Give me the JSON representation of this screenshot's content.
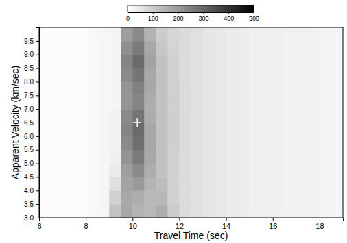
{
  "chart_data": {
    "type": "heatmap",
    "xlabel": "Travel Time (sec)",
    "ylabel": "Apparent Velocity (km/sec)",
    "xlim": [
      6,
      19
    ],
    "ylim": [
      3,
      10
    ],
    "xticks": [
      6,
      8,
      10,
      12,
      14,
      16,
      18
    ],
    "yticks": [
      {
        "value": 3,
        "label": "3.0"
      },
      3.5,
      {
        "value": 4,
        "label": "4.0"
      },
      4.5,
      {
        "value": 5,
        "label": "5.0"
      },
      5.5,
      {
        "value": 6,
        "label": "6.0"
      },
      6.5,
      {
        "value": 7,
        "label": "7.0"
      },
      7.5,
      {
        "value": 8,
        "label": "8.0"
      },
      8.5,
      {
        "value": 9,
        "label": "9.0"
      },
      9.5
    ],
    "color": "#000000",
    "x_bins": [
      6,
      6.5,
      7,
      7.5,
      8,
      8.5,
      9,
      9.5,
      10,
      10.5,
      11,
      11.5,
      12,
      12.5,
      13,
      13.5,
      14,
      14.5,
      15,
      15.5,
      16,
      16.5,
      17,
      17.5,
      18,
      18.5,
      19
    ],
    "y_bins": [
      3,
      3.5,
      4,
      4.5,
      5,
      5.5,
      6,
      6.5,
      7,
      7.5,
      8,
      8.5,
      9,
      9.5,
      10
    ],
    "z": [
      [
        8,
        8,
        8,
        8,
        12,
        18,
        120,
        170,
        150,
        140,
        160,
        100,
        70,
        60,
        50,
        45,
        40,
        35,
        30,
        30,
        30,
        25,
        25,
        25,
        20,
        20
      ],
      [
        8,
        8,
        8,
        8,
        12,
        18,
        90,
        170,
        160,
        140,
        140,
        90,
        70,
        60,
        50,
        45,
        40,
        35,
        30,
        30,
        30,
        25,
        25,
        25,
        20,
        20
      ],
      [
        8,
        8,
        8,
        8,
        12,
        18,
        60,
        180,
        200,
        150,
        130,
        90,
        70,
        60,
        50,
        45,
        40,
        35,
        30,
        30,
        30,
        25,
        25,
        25,
        20,
        20
      ],
      [
        8,
        8,
        8,
        8,
        12,
        18,
        40,
        190,
        230,
        160,
        120,
        90,
        70,
        60,
        50,
        45,
        40,
        35,
        30,
        30,
        30,
        25,
        25,
        25,
        20,
        20
      ],
      [
        8,
        8,
        8,
        8,
        12,
        18,
        30,
        210,
        260,
        170,
        120,
        90,
        70,
        60,
        50,
        45,
        40,
        35,
        30,
        30,
        30,
        25,
        25,
        25,
        20,
        20
      ],
      [
        8,
        8,
        8,
        8,
        12,
        18,
        25,
        230,
        280,
        170,
        120,
        95,
        70,
        60,
        50,
        45,
        40,
        35,
        30,
        30,
        30,
        25,
        25,
        25,
        20,
        20
      ],
      [
        8,
        8,
        8,
        8,
        12,
        18,
        25,
        240,
        290,
        170,
        120,
        95,
        70,
        60,
        50,
        45,
        40,
        35,
        30,
        30,
        30,
        25,
        25,
        25,
        20,
        20
      ],
      [
        8,
        8,
        8,
        8,
        12,
        18,
        25,
        230,
        270,
        160,
        120,
        95,
        70,
        60,
        50,
        45,
        40,
        35,
        30,
        30,
        30,
        25,
        25,
        25,
        20,
        20
      ],
      [
        8,
        8,
        8,
        8,
        12,
        18,
        20,
        210,
        240,
        160,
        120,
        95,
        70,
        60,
        50,
        45,
        40,
        35,
        30,
        30,
        30,
        25,
        25,
        25,
        20,
        20
      ],
      [
        8,
        8,
        8,
        8,
        12,
        18,
        20,
        210,
        250,
        170,
        120,
        95,
        70,
        60,
        50,
        45,
        40,
        35,
        30,
        30,
        30,
        25,
        25,
        25,
        20,
        20
      ],
      [
        8,
        8,
        8,
        8,
        12,
        18,
        20,
        230,
        270,
        170,
        120,
        90,
        70,
        60,
        50,
        45,
        40,
        35,
        30,
        30,
        30,
        25,
        25,
        25,
        20,
        20
      ],
      [
        8,
        8,
        8,
        8,
        12,
        18,
        20,
        240,
        290,
        180,
        120,
        90,
        70,
        60,
        50,
        45,
        40,
        35,
        30,
        30,
        30,
        25,
        25,
        25,
        20,
        20
      ],
      [
        8,
        8,
        8,
        8,
        12,
        18,
        20,
        220,
        260,
        170,
        110,
        85,
        70,
        60,
        50,
        45,
        40,
        35,
        30,
        30,
        30,
        25,
        25,
        25,
        20,
        20
      ],
      [
        8,
        8,
        8,
        8,
        12,
        18,
        20,
        190,
        230,
        150,
        100,
        80,
        70,
        60,
        50,
        45,
        40,
        35,
        30,
        30,
        30,
        25,
        25,
        25,
        20,
        20
      ]
    ],
    "colorbar": {
      "range": [
        0,
        500
      ],
      "ticks": [
        0,
        100,
        200,
        300,
        400,
        500
      ]
    },
    "points": [
      {
        "x": 10.2,
        "y": 6.5
      }
    ],
    "marker": "cross"
  }
}
